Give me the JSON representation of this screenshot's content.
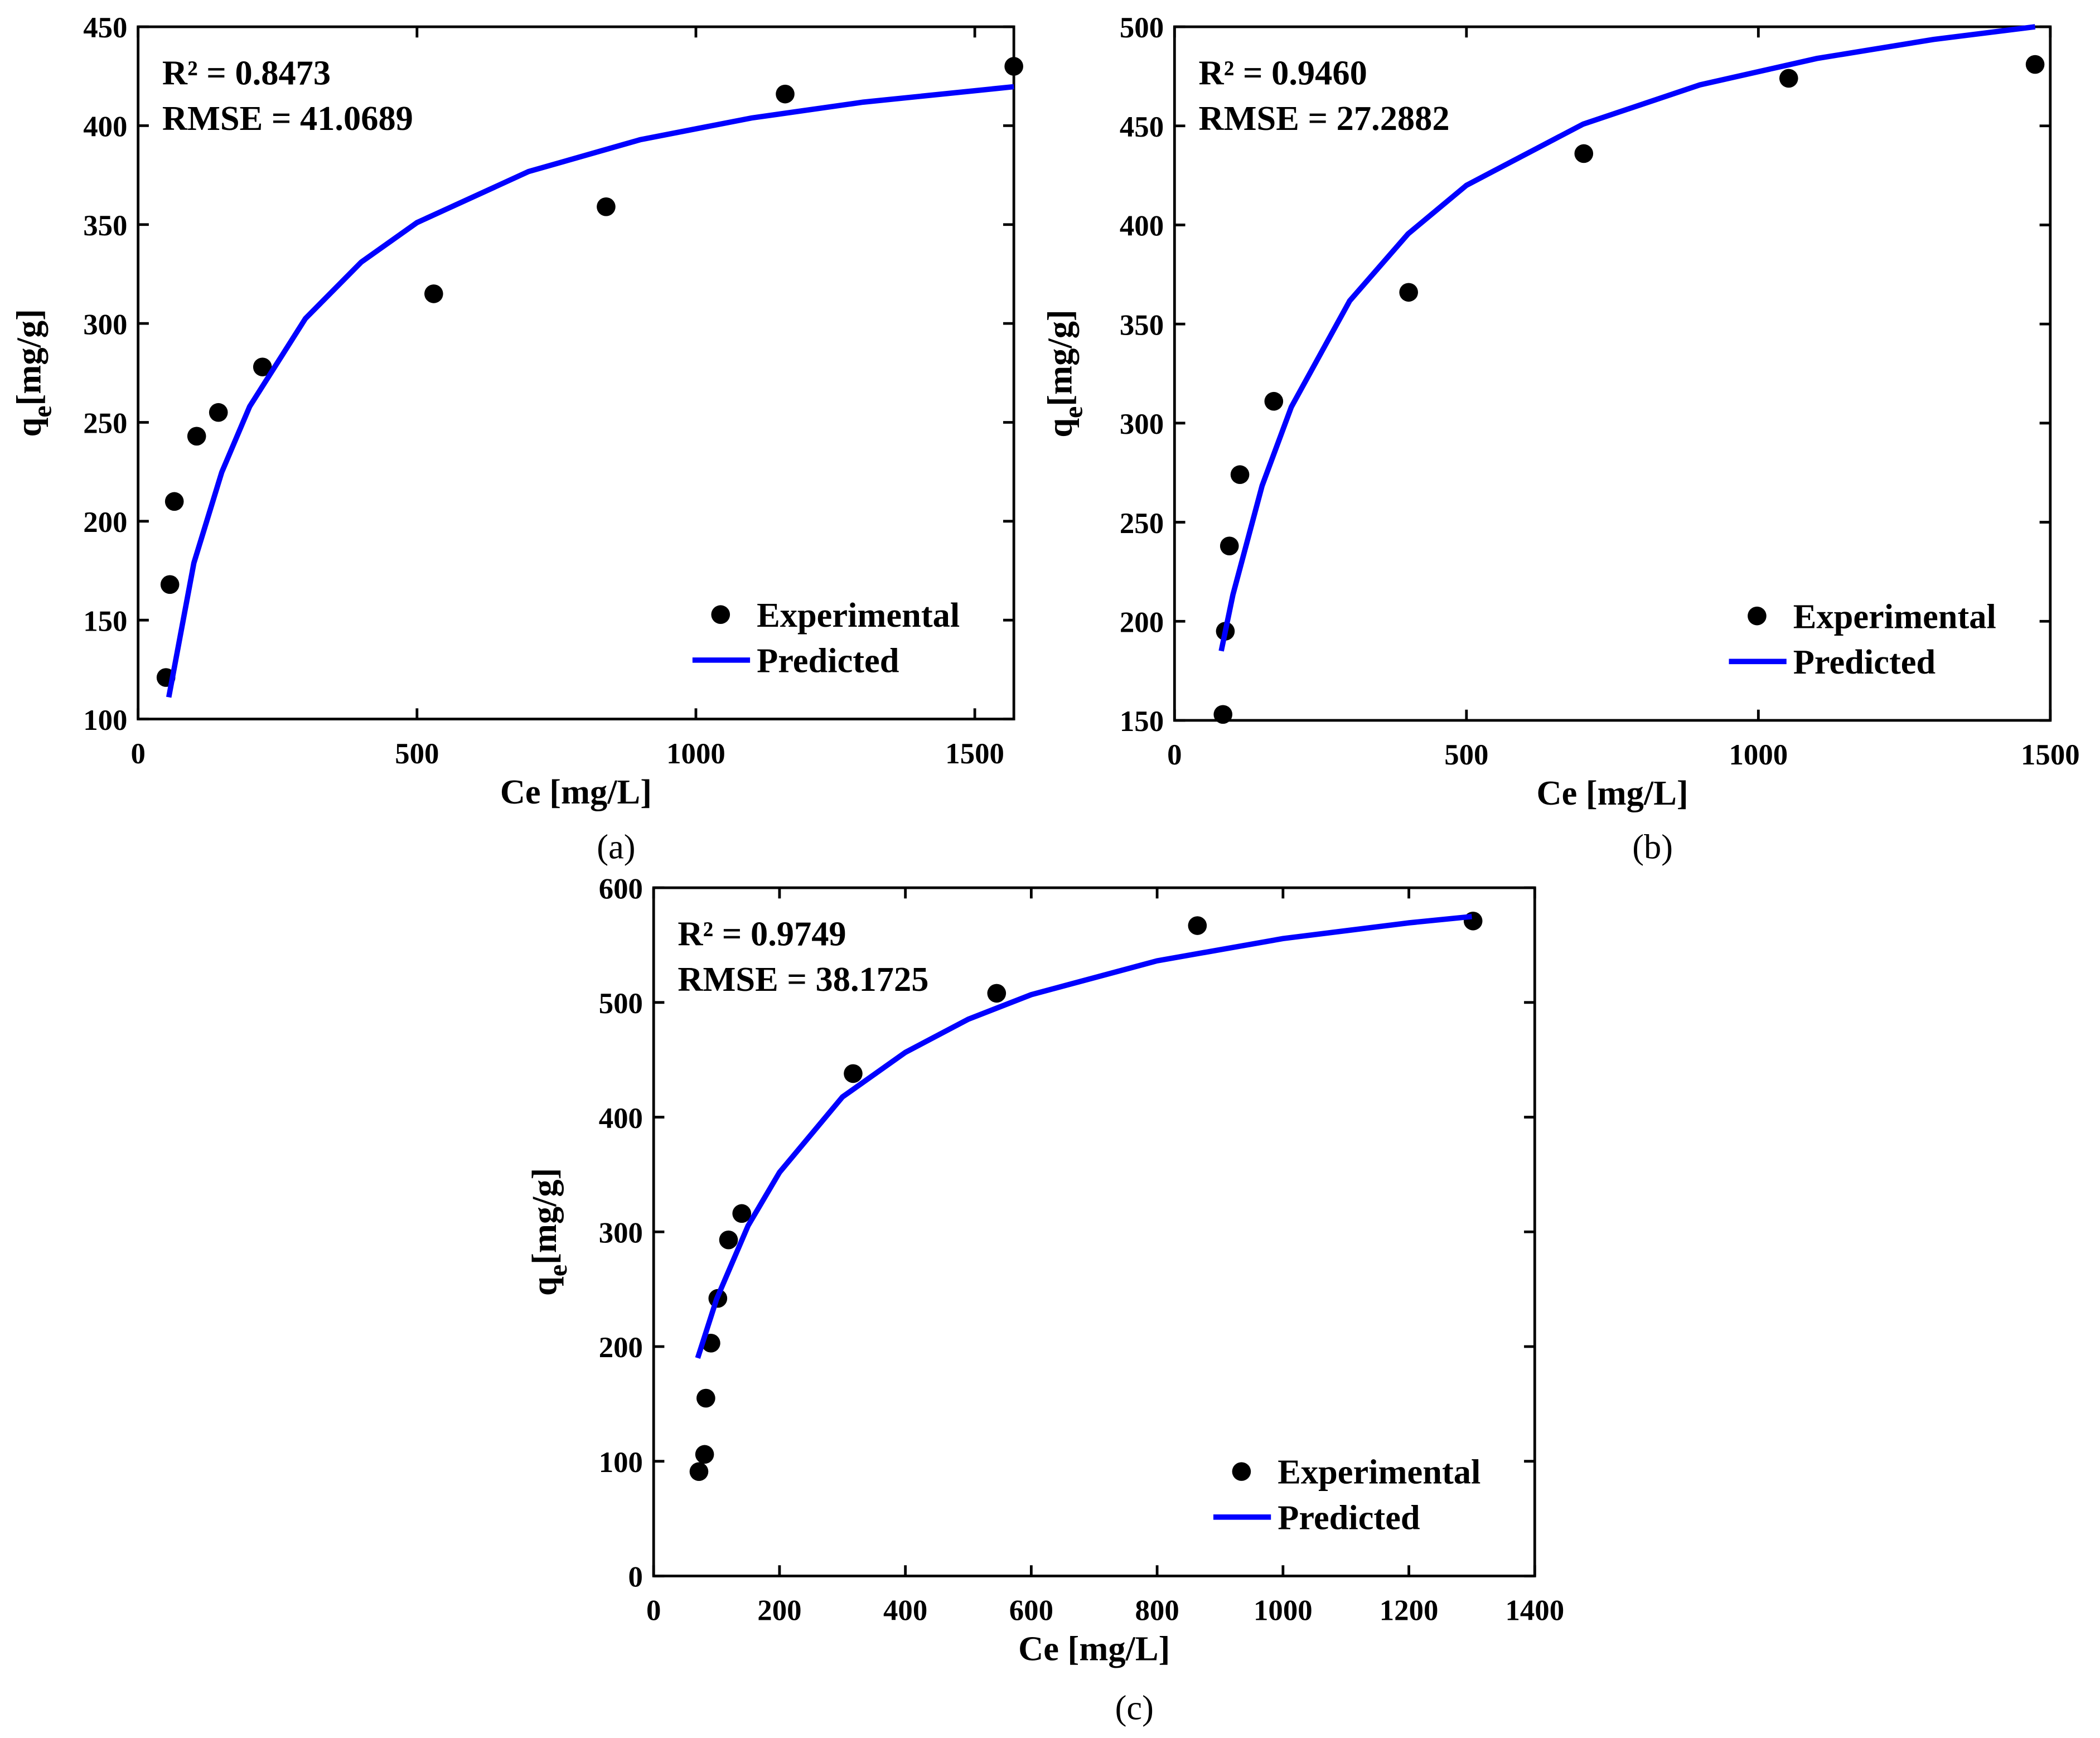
{
  "chart_data": [
    {
      "type": "scatter",
      "caption": "(a)",
      "xlabel": "Ce [mg/L]",
      "ylabel": [
        "q",
        "e",
        "[mg/g]"
      ],
      "annotations": [
        "R² = 0.8473",
        "RMSE = 41.0689"
      ],
      "legend": "lower right",
      "xlim": [
        0,
        1570
      ],
      "xticks": [
        0,
        500,
        1000,
        1500
      ],
      "ylim": [
        100,
        450
      ],
      "yticks": [
        100,
        150,
        200,
        250,
        300,
        350,
        400,
        450
      ],
      "series": [
        {
          "name": "Experimental",
          "type": "scatter",
          "color": "#000000",
          "x": [
            50,
            57,
            65,
            105,
            144,
            223,
            530,
            839,
            1160,
            1570
          ],
          "values": [
            121,
            168,
            210,
            243,
            255,
            278,
            315,
            359,
            416,
            430
          ]
        },
        {
          "name": "Predicted",
          "type": "line",
          "color": "#0000ff",
          "x": [
            55,
            100,
            150,
            200,
            300,
            400,
            500,
            700,
            900,
            1100,
            1300,
            1570
          ],
          "values": [
            111,
            178.9,
            224.8,
            258.0,
            302.5,
            331.0,
            351.0,
            376.8,
            392.9,
            403.9,
            411.9,
            419.7
          ]
        }
      ]
    },
    {
      "type": "scatter",
      "caption": "(b)",
      "xlabel": "Ce [mg/L]",
      "ylabel": [
        "q",
        "e",
        "[mg/g]"
      ],
      "annotations": [
        "R² = 0.9460",
        "RMSE = 27.2882"
      ],
      "legend": "lower right",
      "xlim": [
        0,
        1500
      ],
      "xticks": [
        0,
        500,
        1000,
        1500
      ],
      "ylim": [
        150,
        500
      ],
      "yticks": [
        150,
        200,
        250,
        300,
        350,
        400,
        450,
        500
      ],
      "series": [
        {
          "name": "Experimental",
          "type": "scatter",
          "color": "#000000",
          "x": [
            83,
            87,
            94,
            112,
            170,
            401,
            701,
            1052,
            1474
          ],
          "values": [
            153,
            195,
            238,
            274,
            311,
            366,
            436,
            474,
            481
          ]
        },
        {
          "name": "Predicted",
          "type": "line",
          "color": "#0000ff",
          "x": [
            80,
            100,
            150,
            200,
            300,
            400,
            500,
            700,
            900,
            1100,
            1300,
            1474
          ],
          "values": [
            185.0,
            213.4,
            268.4,
            308.1,
            361.7,
            395.5,
            420.0,
            450.9,
            470.7,
            484.0,
            493.6,
            500.0
          ]
        }
      ]
    },
    {
      "type": "scatter",
      "caption": "(c)",
      "xlabel": "Ce [mg/L]",
      "ylabel": [
        "q",
        "e",
        "[mg/g]"
      ],
      "annotations": [
        "R² = 0.9749",
        "RMSE = 38.1725"
      ],
      "legend": "lower right",
      "xlim": [
        0,
        1400
      ],
      "xticks": [
        0,
        200,
        400,
        600,
        800,
        1000,
        1200,
        1400
      ],
      "ylim": [
        0,
        600
      ],
      "yticks": [
        0,
        100,
        200,
        300,
        400,
        500,
        600
      ],
      "series": [
        {
          "name": "Experimental",
          "type": "scatter",
          "color": "#000000",
          "x": [
            72,
            81,
            83,
            91,
            102,
            119,
            140,
            317,
            545,
            864,
            1302
          ],
          "values": [
            91,
            106,
            155,
            203,
            242,
            293,
            316,
            438,
            508,
            567,
            571
          ]
        },
        {
          "name": "Predicted",
          "type": "line",
          "color": "#0000ff",
          "x": [
            70,
            100,
            150,
            200,
            300,
            400,
            500,
            600,
            800,
            1000,
            1200,
            1300
          ],
          "values": [
            190.0,
            241.3,
            305.3,
            351.9,
            417.6,
            456.5,
            485.4,
            506.8,
            536.3,
            555.7,
            569.4,
            574.9
          ]
        }
      ]
    }
  ]
}
